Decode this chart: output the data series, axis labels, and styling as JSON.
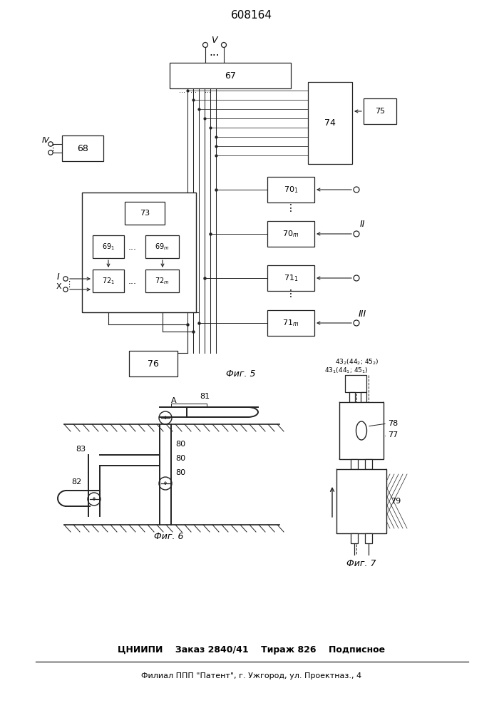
{
  "title": "608164",
  "fig5_label": "Фиг. 5",
  "fig6_label": "Фиг. 6",
  "fig7_label": "Фиг. 7",
  "bottom_line1": "ЦНИИПИ    Заказ 2840/41    Тираж 826    Подписное",
  "bottom_line2": "Филиал ППП \"Патент\", г. Ужгород, ул. Проектназ., 4",
  "bg_color": "#ffffff",
  "lc": "#222222"
}
